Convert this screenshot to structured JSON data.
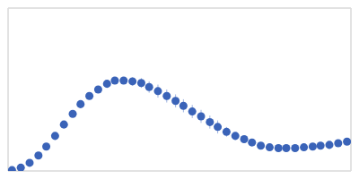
{
  "chart_data": {
    "type": "scatter",
    "x": [
      0.004,
      0.013,
      0.022,
      0.031,
      0.039,
      0.048,
      0.057,
      0.066,
      0.074,
      0.083,
      0.092,
      0.101,
      0.109,
      0.118,
      0.127,
      0.136,
      0.144,
      0.153,
      0.162,
      0.171,
      0.179,
      0.188,
      0.197,
      0.206,
      0.214,
      0.223,
      0.232,
      0.241,
      0.249,
      0.258,
      0.267,
      0.276,
      0.284,
      0.293,
      0.302,
      0.311,
      0.319,
      0.328,
      0.337,
      0.346
    ],
    "values": [
      0.01,
      0.04,
      0.1,
      0.19,
      0.3,
      0.43,
      0.57,
      0.7,
      0.82,
      0.92,
      1.0,
      1.07,
      1.11,
      1.11,
      1.1,
      1.08,
      1.03,
      0.98,
      0.92,
      0.86,
      0.8,
      0.73,
      0.67,
      0.6,
      0.54,
      0.48,
      0.43,
      0.39,
      0.35,
      0.31,
      0.29,
      0.28,
      0.28,
      0.28,
      0.29,
      0.3,
      0.31,
      0.32,
      0.34,
      0.36
    ],
    "errors": [
      0.005,
      0.005,
      0.005,
      0.005,
      0.005,
      0.008,
      0.01,
      0.01,
      0.015,
      0.02,
      0.02,
      0.03,
      0.03,
      0.04,
      0.05,
      0.06,
      0.07,
      0.08,
      0.08,
      0.08,
      0.08,
      0.08,
      0.08,
      0.08,
      0.08,
      0.06,
      0.04,
      0.03,
      0.04,
      0.04,
      0.03,
      0.03,
      0.03,
      0.02,
      0.02,
      0.02,
      0.02,
      0.02,
      0.02,
      0.02
    ],
    "xlim": [
      0,
      0.35
    ],
    "ylim": [
      0,
      2
    ],
    "xticks": [
      0.1
    ],
    "yticks": [
      1
    ],
    "grid": true,
    "tick_labels": false,
    "color": "#3a63b8"
  }
}
